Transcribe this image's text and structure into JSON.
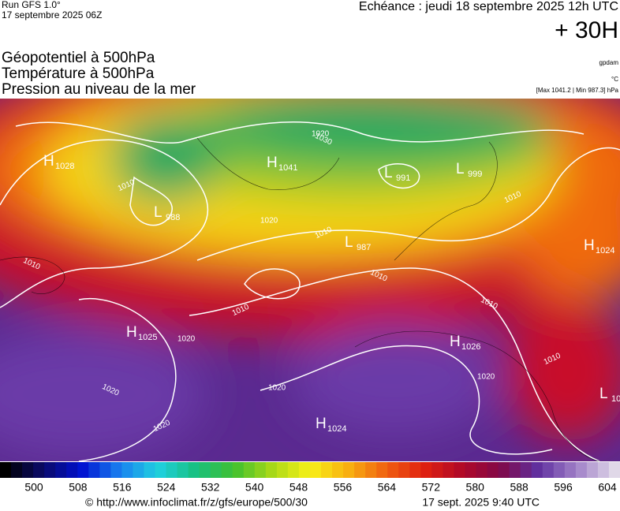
{
  "header": {
    "run": "Run GFS 1.0°",
    "run_date": "17 septembre 2025 06Z",
    "echeance": "Echéance : jeudi 18 septembre 2025 12h UTC",
    "offset": "+ 30H",
    "titles": [
      "Géopotentiel à 500hPa",
      "Température à 500hPa",
      "Pression au niveau de la mer"
    ],
    "units": [
      "gpdam",
      "°C",
      "[Max 1041.2 | Min 987.3] hPa"
    ]
  },
  "map": {
    "centers": [
      {
        "kind": "H",
        "value": "1028"
      },
      {
        "kind": "L",
        "value": "988"
      },
      {
        "kind": "H",
        "value": "1041"
      },
      {
        "kind": "L",
        "value": "991"
      },
      {
        "kind": "L",
        "value": "999"
      },
      {
        "kind": "L",
        "value": "987"
      },
      {
        "kind": "H",
        "value": "1024"
      },
      {
        "kind": "H",
        "value": "1025"
      },
      {
        "kind": "H",
        "value": "1026"
      },
      {
        "kind": "L",
        "value": "10"
      },
      {
        "kind": "H",
        "value": "1024"
      }
    ],
    "isobar_labels": [
      "1010",
      "1020",
      "1010",
      "1010",
      "1020",
      "1010",
      "1010",
      "1020",
      "1020",
      "1020",
      "1020",
      "1010",
      "1010",
      "1020",
      "1030",
      "1010"
    ]
  },
  "legend": {
    "labels": [
      "500",
      "508",
      "516",
      "524",
      "532",
      "540",
      "548",
      "556",
      "564",
      "572",
      "580",
      "588",
      "596",
      "604"
    ]
  },
  "footer": {
    "source": "© http://www.infoclimat.fr/z/gfs/europe/500/30",
    "timestamp": "17 sept. 2025  9:40 UTC"
  }
}
